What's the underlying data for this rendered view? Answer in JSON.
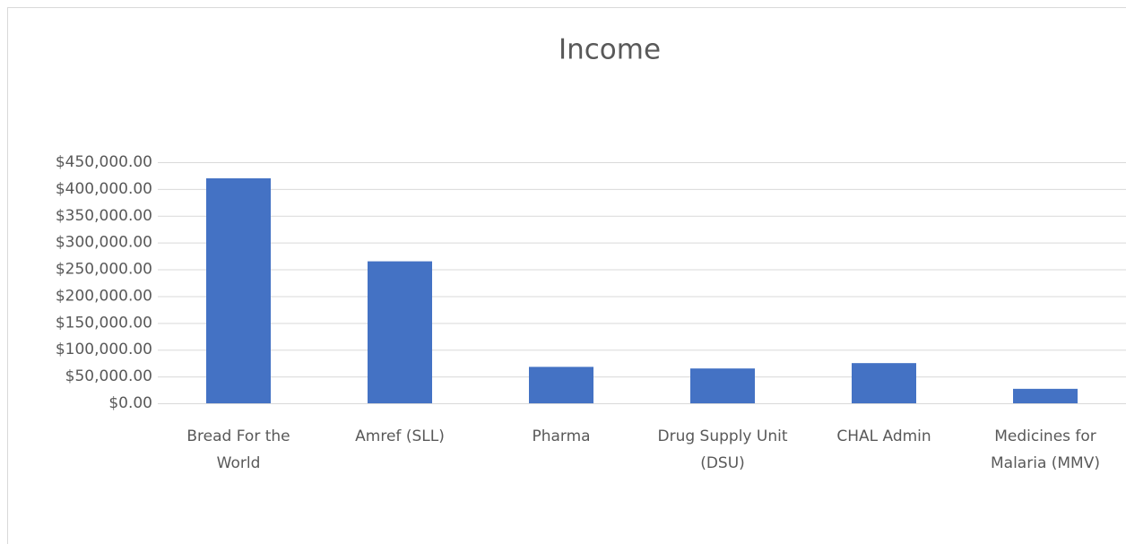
{
  "chart_data": {
    "type": "bar",
    "title": "Income",
    "categories": [
      "Bread For the World",
      "Amref (SLL)",
      "Pharma",
      "Drug Supply Unit (DSU)",
      "CHAL Admin",
      "Medicines for Malaria (MMV)"
    ],
    "values": [
      420000,
      265000,
      68000,
      65000,
      75000,
      27000
    ],
    "color": "#4472c4",
    "ylim": [
      0,
      450000
    ],
    "yticks": [
      {
        "value": 0,
        "label": "$0.00"
      },
      {
        "value": 50000,
        "label": "$50,000.00"
      },
      {
        "value": 100000,
        "label": "$100,000.00"
      },
      {
        "value": 150000,
        "label": "$150,000.00"
      },
      {
        "value": 200000,
        "label": "$200,000.00"
      },
      {
        "value": 250000,
        "label": "$250,000.00"
      },
      {
        "value": 300000,
        "label": "$300,000.00"
      },
      {
        "value": 350000,
        "label": "$350,000.00"
      },
      {
        "value": 400000,
        "label": "$400,000.00"
      },
      {
        "value": 450000,
        "label": "$450,000.00"
      }
    ],
    "grid": true
  }
}
